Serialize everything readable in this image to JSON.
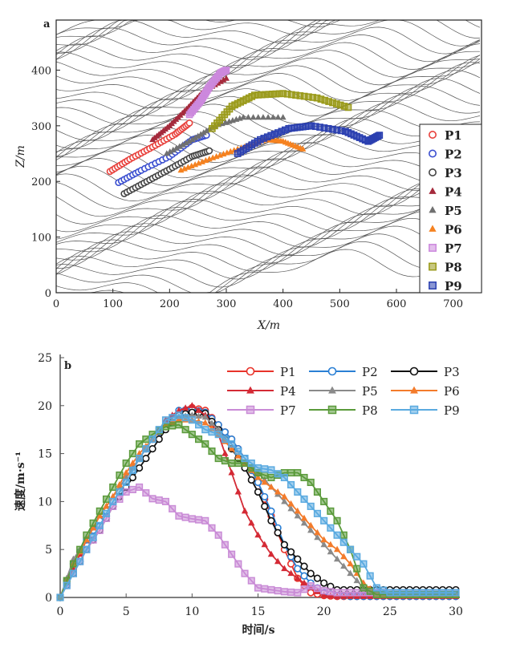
{
  "chart_data": [
    {
      "panel": "a",
      "type": "scatter",
      "xlabel": "X/m",
      "ylabel": "Z/m",
      "xlim": [
        0,
        750
      ],
      "ylim": [
        0,
        490
      ],
      "xticks": [
        0,
        100,
        200,
        300,
        400,
        500,
        600,
        700
      ],
      "yticks": [
        0,
        100,
        200,
        300,
        400
      ],
      "legend_position": "right",
      "series": [
        {
          "name": "P1",
          "marker": "circle-open",
          "color": "#e8413c",
          "x": [
            95,
            130,
            170,
            210,
            235
          ],
          "y": [
            218,
            240,
            262,
            285,
            305
          ]
        },
        {
          "name": "P2",
          "marker": "circle-open",
          "color": "#3b4fd0",
          "x": [
            110,
            150,
            200,
            240,
            265
          ],
          "y": [
            198,
            220,
            245,
            275,
            283
          ]
        },
        {
          "name": "P3",
          "marker": "circle-open",
          "color": "#444444",
          "x": [
            120,
            160,
            200,
            240,
            270
          ],
          "y": [
            178,
            200,
            222,
            245,
            255
          ]
        },
        {
          "name": "P4",
          "marker": "triangle",
          "color": "#a52a3c",
          "x": [
            170,
            200,
            230,
            260,
            300
          ],
          "y": [
            275,
            300,
            330,
            362,
            385
          ]
        },
        {
          "name": "P5",
          "marker": "triangle",
          "color": "#707070",
          "x": [
            195,
            240,
            280,
            330,
            400
          ],
          "y": [
            250,
            275,
            300,
            315,
            315
          ]
        },
        {
          "name": "P6",
          "marker": "triangle",
          "color": "#f58220",
          "x": [
            220,
            270,
            320,
            370,
            400,
            435
          ],
          "y": [
            220,
            240,
            258,
            275,
            272,
            258
          ]
        },
        {
          "name": "P7",
          "marker": "square",
          "color": "#cc88dd",
          "x": [
            235,
            255,
            270,
            290,
            300
          ],
          "y": [
            320,
            345,
            370,
            395,
            400
          ]
        },
        {
          "name": "P8",
          "marker": "square",
          "color": "#9a9a1a",
          "x": [
            275,
            310,
            350,
            400,
            460,
            515
          ],
          "y": [
            295,
            335,
            355,
            358,
            350,
            333
          ]
        },
        {
          "name": "P9",
          "marker": "square",
          "color": "#2a3fb0",
          "x": [
            320,
            360,
            410,
            450,
            510,
            550,
            570
          ],
          "y": [
            250,
            275,
            295,
            300,
            290,
            272,
            283
          ]
        }
      ]
    },
    {
      "panel": "b",
      "type": "line",
      "xlabel": "时间/s",
      "ylabel": "速度/m·s⁻¹",
      "xlim": [
        0,
        30
      ],
      "ylim": [
        0,
        25
      ],
      "xticks": [
        0,
        5,
        10,
        15,
        20,
        25,
        30
      ],
      "yticks": [
        0,
        5,
        10,
        15,
        20,
        25
      ],
      "legend_position": "top-right",
      "x": [
        0,
        1,
        2,
        3,
        4,
        5,
        6,
        7,
        8,
        9,
        10,
        11,
        12,
        13,
        14,
        15,
        16,
        17,
        18,
        19,
        20,
        21,
        22,
        23,
        24,
        25,
        26,
        27,
        28,
        29,
        30
      ],
      "series": [
        {
          "name": "P1",
          "marker": "circle-open",
          "color": "#e8332a",
          "values": [
            0,
            3,
            5.5,
            7.5,
            9.5,
            12,
            14.5,
            16.5,
            18,
            19.3,
            19.8,
            19.5,
            18,
            16.5,
            14.5,
            12,
            8.5,
            5,
            2,
            0.5,
            0.2,
            0.1,
            0.1,
            0.1,
            0.1,
            0.1,
            0.1,
            0.1,
            0.1,
            0.1,
            0.1
          ]
        },
        {
          "name": "P2",
          "marker": "circle-open",
          "color": "#2a7fd4",
          "values": [
            0,
            3.5,
            6,
            8,
            10,
            12,
            14.5,
            16.5,
            18,
            19.5,
            19.6,
            19.3,
            18,
            16.5,
            14.5,
            12,
            9,
            5.5,
            3,
            1.5,
            0.5,
            0.2,
            0.1,
            0.1,
            0.1,
            0.1,
            0.1,
            0.1,
            0.1,
            0.1,
            0.1
          ]
        },
        {
          "name": "P3",
          "marker": "circle-open",
          "color": "#111111",
          "values": [
            0,
            2.5,
            5,
            7,
            9.5,
            11.5,
            13.5,
            15.5,
            17.5,
            19,
            19.3,
            19.2,
            17.5,
            15.5,
            13.5,
            11,
            8,
            5.5,
            4,
            2.5,
            1.5,
            0.8,
            0.8,
            0.8,
            0.8,
            0.8,
            0.8,
            0.8,
            0.8,
            0.8,
            0.8
          ]
        },
        {
          "name": "P4",
          "marker": "triangle",
          "color": "#d42a35",
          "values": [
            0,
            3,
            6,
            8.5,
            10.5,
            12.5,
            14.5,
            16.5,
            18.5,
            19.5,
            20,
            19,
            17,
            13,
            9,
            6.5,
            4.5,
            3,
            2,
            1,
            0.2,
            0.1,
            0.1,
            0.1,
            0.1,
            0.1,
            0.1,
            0.1,
            0.1,
            0.1,
            0.1
          ]
        },
        {
          "name": "P5",
          "marker": "triangle",
          "color": "#8a8a8a",
          "values": [
            0,
            4,
            6,
            8.5,
            10.5,
            12.5,
            14.5,
            16.5,
            18,
            18.8,
            19,
            18.8,
            17.5,
            15.5,
            14,
            13,
            11.5,
            10,
            8.5,
            7,
            5.5,
            4,
            2.5,
            1,
            0.5,
            0.3,
            0.3,
            0.3,
            0.3,
            0.3,
            0.3
          ]
        },
        {
          "name": "P6",
          "marker": "triangle",
          "color": "#f37b2b",
          "values": [
            0,
            3.5,
            6,
            8.5,
            10.5,
            13,
            15,
            16.5,
            18,
            18.5,
            18.5,
            18.2,
            17,
            15.5,
            14,
            12.5,
            11.5,
            10.5,
            9,
            7.5,
            6,
            5,
            3.5,
            1.5,
            0.3,
            0.2,
            0.2,
            0.2,
            0.2,
            0.2,
            0.2
          ]
        },
        {
          "name": "P7",
          "marker": "square",
          "color": "#c98bd6",
          "values": [
            0,
            2.5,
            5,
            7,
            9.5,
            11,
            11.5,
            10.3,
            10,
            8.5,
            8.2,
            8,
            6.5,
            4.5,
            2.5,
            1,
            0.8,
            0.6,
            0.5,
            1.2,
            0.7,
            0.5,
            0.5,
            0.5,
            0.5,
            0.5,
            0.5,
            0.5,
            0.5,
            0.5,
            0.5
          ]
        },
        {
          "name": "P8",
          "marker": "square",
          "color": "#5a9a3a",
          "values": [
            0,
            3.5,
            6.5,
            9,
            11.5,
            14,
            16,
            17,
            17.8,
            18,
            17,
            16,
            14.5,
            14,
            14,
            13,
            12.5,
            13,
            13,
            12,
            10,
            8,
            5,
            1,
            0.3,
            0.3,
            0.3,
            0.3,
            0.3,
            0.3,
            0.3
          ]
        },
        {
          "name": "P9",
          "marker": "square",
          "color": "#5aaae0",
          "values": [
            0,
            2.5,
            5,
            7.5,
            10,
            12,
            14.5,
            16.5,
            18.5,
            19,
            18.5,
            17.5,
            17,
            16,
            14.5,
            13.5,
            13.3,
            12.5,
            11,
            9.5,
            8,
            6.5,
            5,
            3.5,
            1,
            0.5,
            0.5,
            0.5,
            0.5,
            0.5,
            0.5
          ]
        }
      ]
    }
  ]
}
